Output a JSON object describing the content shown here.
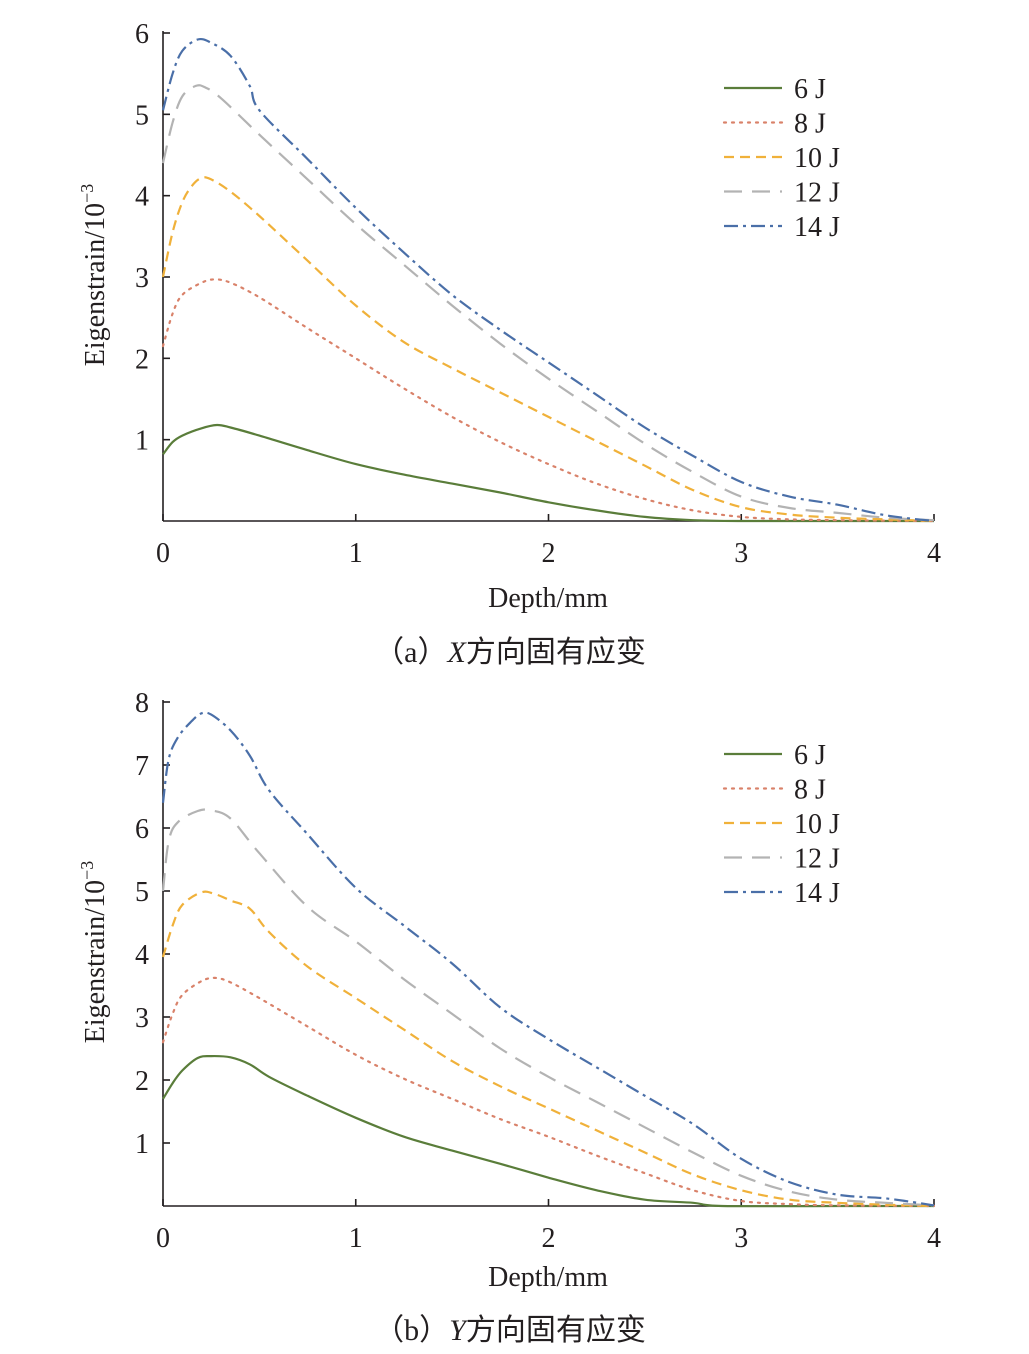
{
  "legend_entries": [
    "6 J",
    "8 J",
    "10 J",
    "12 J",
    "14 J"
  ],
  "series_styles": [
    {
      "color": "#5a7d3a",
      "dash": ""
    },
    {
      "color": "#d9826a",
      "dash": "2,6"
    },
    {
      "color": "#f0b13a",
      "dash": "10,6"
    },
    {
      "color": "#b3b3b3",
      "dash": "18,10"
    },
    {
      "color": "#4a6fa8",
      "dash": "14,5,3,5"
    }
  ],
  "chart_data": [
    {
      "type": "line",
      "caption": {
        "prefix": "（a）",
        "axis": "X",
        "suffix": "方向固有应变"
      },
      "xlabel": "Depth/mm",
      "ylabel_base": "Eigenstrain/10",
      "ylabel_exp": "−3",
      "xlim": [
        0,
        4
      ],
      "ylim": [
        0,
        6
      ],
      "xticks": [
        "0",
        "1",
        "2",
        "3",
        "4"
      ],
      "yticks": [
        "1",
        "2",
        "3",
        "4",
        "5",
        "6"
      ],
      "legend_position": "top-right",
      "series": [
        {
          "name": "6 J",
          "points": [
            [
              0,
              0.82
            ],
            [
              0.05,
              0.97
            ],
            [
              0.1,
              1.05
            ],
            [
              0.2,
              1.14
            ],
            [
              0.28,
              1.18
            ],
            [
              0.35,
              1.15
            ],
            [
              0.5,
              1.05
            ],
            [
              0.75,
              0.87
            ],
            [
              1.0,
              0.7
            ],
            [
              1.25,
              0.57
            ],
            [
              1.5,
              0.46
            ],
            [
              1.75,
              0.35
            ],
            [
              2.0,
              0.23
            ],
            [
              2.25,
              0.13
            ],
            [
              2.5,
              0.05
            ],
            [
              2.75,
              0.01
            ],
            [
              3.0,
              0.0
            ],
            [
              3.5,
              0.0
            ],
            [
              4.0,
              0.0
            ]
          ]
        },
        {
          "name": "8 J",
          "points": [
            [
              0,
              2.15
            ],
            [
              0.05,
              2.55
            ],
            [
              0.1,
              2.78
            ],
            [
              0.2,
              2.93
            ],
            [
              0.27,
              2.97
            ],
            [
              0.35,
              2.93
            ],
            [
              0.5,
              2.75
            ],
            [
              0.75,
              2.37
            ],
            [
              1.0,
              2.0
            ],
            [
              1.25,
              1.63
            ],
            [
              1.5,
              1.28
            ],
            [
              1.75,
              0.97
            ],
            [
              2.0,
              0.7
            ],
            [
              2.25,
              0.46
            ],
            [
              2.5,
              0.27
            ],
            [
              2.75,
              0.13
            ],
            [
              3.0,
              0.05
            ],
            [
              3.25,
              0.02
            ],
            [
              3.5,
              0.01
            ],
            [
              4.0,
              0.0
            ]
          ]
        },
        {
          "name": "10 J",
          "points": [
            [
              0,
              3.0
            ],
            [
              0.05,
              3.55
            ],
            [
              0.1,
              3.92
            ],
            [
              0.15,
              4.12
            ],
            [
              0.2,
              4.22
            ],
            [
              0.25,
              4.2
            ],
            [
              0.35,
              4.05
            ],
            [
              0.5,
              3.75
            ],
            [
              0.75,
              3.2
            ],
            [
              1.0,
              2.65
            ],
            [
              1.25,
              2.2
            ],
            [
              1.5,
              1.88
            ],
            [
              1.75,
              1.58
            ],
            [
              2.0,
              1.28
            ],
            [
              2.25,
              0.98
            ],
            [
              2.5,
              0.68
            ],
            [
              2.75,
              0.38
            ],
            [
              3.0,
              0.17
            ],
            [
              3.25,
              0.08
            ],
            [
              3.5,
              0.04
            ],
            [
              3.75,
              0.02
            ],
            [
              4.0,
              0.0
            ]
          ]
        },
        {
          "name": "12 J",
          "points": [
            [
              0,
              4.4
            ],
            [
              0.05,
              4.9
            ],
            [
              0.1,
              5.22
            ],
            [
              0.17,
              5.35
            ],
            [
              0.22,
              5.33
            ],
            [
              0.3,
              5.2
            ],
            [
              0.5,
              4.75
            ],
            [
              0.75,
              4.2
            ],
            [
              1.0,
              3.65
            ],
            [
              1.25,
              3.15
            ],
            [
              1.5,
              2.65
            ],
            [
              1.75,
              2.18
            ],
            [
              2.0,
              1.75
            ],
            [
              2.25,
              1.35
            ],
            [
              2.5,
              0.95
            ],
            [
              2.75,
              0.6
            ],
            [
              3.0,
              0.3
            ],
            [
              3.25,
              0.16
            ],
            [
              3.5,
              0.1
            ],
            [
              3.75,
              0.04
            ],
            [
              4.0,
              0.01
            ]
          ]
        },
        {
          "name": "14 J",
          "points": [
            [
              0,
              5.05
            ],
            [
              0.05,
              5.5
            ],
            [
              0.1,
              5.78
            ],
            [
              0.18,
              5.92
            ],
            [
              0.25,
              5.88
            ],
            [
              0.35,
              5.72
            ],
            [
              0.45,
              5.35
            ],
            [
              0.5,
              5.05
            ],
            [
              0.75,
              4.45
            ],
            [
              1.0,
              3.85
            ],
            [
              1.25,
              3.3
            ],
            [
              1.5,
              2.78
            ],
            [
              1.75,
              2.35
            ],
            [
              2.0,
              1.95
            ],
            [
              2.25,
              1.55
            ],
            [
              2.5,
              1.15
            ],
            [
              2.75,
              0.8
            ],
            [
              3.0,
              0.48
            ],
            [
              3.25,
              0.3
            ],
            [
              3.5,
              0.2
            ],
            [
              3.75,
              0.07
            ],
            [
              4.0,
              0.0
            ]
          ]
        }
      ]
    },
    {
      "type": "line",
      "caption": {
        "prefix": "（b）",
        "axis": "Y",
        "suffix": "方向固有应变"
      },
      "xlabel": "Depth/mm",
      "ylabel_base": "Eigenstrain/10",
      "ylabel_exp": "−3",
      "xlim": [
        0,
        4
      ],
      "ylim": [
        0,
        8
      ],
      "xticks": [
        "0",
        "1",
        "2",
        "3",
        "4"
      ],
      "yticks": [
        "1",
        "2",
        "3",
        "4",
        "5",
        "6",
        "7",
        "8"
      ],
      "legend_position": "top-right",
      "series": [
        {
          "name": "6 J",
          "points": [
            [
              0,
              1.7
            ],
            [
              0.05,
              1.95
            ],
            [
              0.1,
              2.15
            ],
            [
              0.18,
              2.35
            ],
            [
              0.25,
              2.38
            ],
            [
              0.35,
              2.36
            ],
            [
              0.45,
              2.25
            ],
            [
              0.55,
              2.05
            ],
            [
              0.75,
              1.75
            ],
            [
              1.0,
              1.4
            ],
            [
              1.25,
              1.1
            ],
            [
              1.5,
              0.88
            ],
            [
              1.75,
              0.67
            ],
            [
              2.0,
              0.45
            ],
            [
              2.25,
              0.25
            ],
            [
              2.5,
              0.1
            ],
            [
              2.75,
              0.05
            ],
            [
              2.9,
              0.0
            ],
            [
              3.5,
              0.0
            ],
            [
              4.0,
              0.0
            ]
          ]
        },
        {
          "name": "8 J",
          "points": [
            [
              0,
              2.6
            ],
            [
              0.05,
              3.05
            ],
            [
              0.1,
              3.35
            ],
            [
              0.2,
              3.57
            ],
            [
              0.27,
              3.62
            ],
            [
              0.35,
              3.55
            ],
            [
              0.5,
              3.3
            ],
            [
              0.75,
              2.85
            ],
            [
              1.0,
              2.4
            ],
            [
              1.25,
              2.02
            ],
            [
              1.5,
              1.7
            ],
            [
              1.75,
              1.38
            ],
            [
              2.0,
              1.1
            ],
            [
              2.25,
              0.8
            ],
            [
              2.5,
              0.52
            ],
            [
              2.75,
              0.25
            ],
            [
              3.0,
              0.08
            ],
            [
              3.25,
              0.03
            ],
            [
              3.5,
              0.01
            ],
            [
              4.0,
              0.0
            ]
          ]
        },
        {
          "name": "10 J",
          "points": [
            [
              0,
              3.95
            ],
            [
              0.05,
              4.45
            ],
            [
              0.1,
              4.78
            ],
            [
              0.2,
              4.98
            ],
            [
              0.27,
              4.95
            ],
            [
              0.35,
              4.85
            ],
            [
              0.45,
              4.72
            ],
            [
              0.55,
              4.35
            ],
            [
              0.75,
              3.8
            ],
            [
              1.0,
              3.3
            ],
            [
              1.25,
              2.8
            ],
            [
              1.5,
              2.3
            ],
            [
              1.75,
              1.9
            ],
            [
              2.0,
              1.55
            ],
            [
              2.25,
              1.2
            ],
            [
              2.5,
              0.85
            ],
            [
              2.75,
              0.5
            ],
            [
              3.0,
              0.25
            ],
            [
              3.25,
              0.1
            ],
            [
              3.5,
              0.05
            ],
            [
              3.75,
              0.02
            ],
            [
              4.0,
              0.0
            ]
          ]
        },
        {
          "name": "12 J",
          "points": [
            [
              0,
              5.0
            ],
            [
              0.03,
              5.8
            ],
            [
              0.08,
              6.1
            ],
            [
              0.18,
              6.27
            ],
            [
              0.25,
              6.28
            ],
            [
              0.35,
              6.15
            ],
            [
              0.5,
              5.6
            ],
            [
              0.75,
              4.75
            ],
            [
              1.0,
              4.2
            ],
            [
              1.25,
              3.6
            ],
            [
              1.5,
              3.05
            ],
            [
              1.75,
              2.5
            ],
            [
              2.0,
              2.05
            ],
            [
              2.25,
              1.65
            ],
            [
              2.5,
              1.25
            ],
            [
              2.75,
              0.85
            ],
            [
              3.0,
              0.48
            ],
            [
              3.25,
              0.23
            ],
            [
              3.5,
              0.1
            ],
            [
              3.75,
              0.05
            ],
            [
              4.0,
              0.01
            ]
          ]
        },
        {
          "name": "14 J",
          "points": [
            [
              0,
              6.4
            ],
            [
              0.03,
              7.1
            ],
            [
              0.08,
              7.45
            ],
            [
              0.15,
              7.7
            ],
            [
              0.2,
              7.82
            ],
            [
              0.25,
              7.8
            ],
            [
              0.35,
              7.55
            ],
            [
              0.45,
              7.15
            ],
            [
              0.55,
              6.6
            ],
            [
              0.75,
              5.9
            ],
            [
              1.0,
              5.05
            ],
            [
              1.25,
              4.45
            ],
            [
              1.5,
              3.85
            ],
            [
              1.75,
              3.15
            ],
            [
              2.0,
              2.65
            ],
            [
              2.25,
              2.2
            ],
            [
              2.5,
              1.75
            ],
            [
              2.75,
              1.3
            ],
            [
              3.0,
              0.75
            ],
            [
              3.25,
              0.38
            ],
            [
              3.5,
              0.18
            ],
            [
              3.75,
              0.12
            ],
            [
              4.0,
              0.01
            ]
          ]
        }
      ]
    }
  ]
}
